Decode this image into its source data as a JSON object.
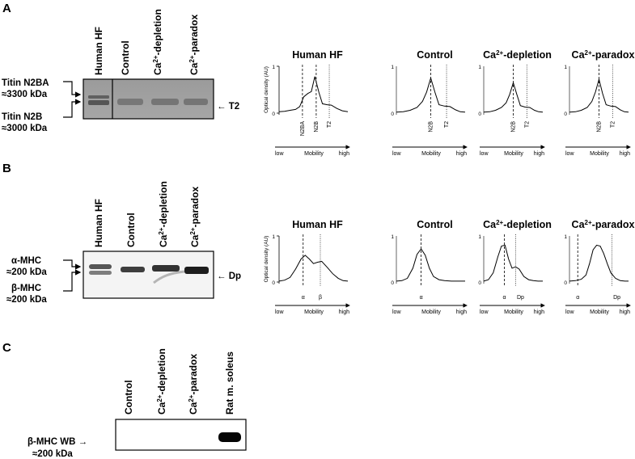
{
  "panels": {
    "A": {
      "letter": "A",
      "lanes": [
        "Human HF",
        "Control",
        "Ca2+-depletion",
        "Ca2+-paradox"
      ],
      "band_left_top": {
        "line1": "Titin N2BA",
        "line2": "≈3300 kDa"
      },
      "band_left_bottom": {
        "line1": "Titin N2B",
        "line2": "≈3000 kDa"
      },
      "band_right": "← T2",
      "plots": [
        {
          "title": "Human HF",
          "peaks": [
            "N2BA",
            "N2B",
            "T2"
          ]
        },
        {
          "title": "Control",
          "peaks": [
            "N2B",
            "T2"
          ]
        },
        {
          "title": "Ca2+-depletion",
          "peaks": [
            "N2B",
            "T2"
          ]
        },
        {
          "title": "Ca2+-paradox",
          "peaks": [
            "N2B",
            "T2"
          ]
        }
      ]
    },
    "B": {
      "letter": "B",
      "lanes": [
        "Human HF",
        "Control",
        "Ca2+-depletion",
        "Ca2+-paradox"
      ],
      "band_left_top": {
        "line1": "α-MHC",
        "line2": "≈200 kDa"
      },
      "band_left_bottom": {
        "line1": "β-MHC",
        "line2": "≈200 kDa"
      },
      "band_right": "← Dp",
      "plots": [
        {
          "title": "Human HF",
          "peaks": [
            "α",
            "β"
          ]
        },
        {
          "title": "Control",
          "peaks": [
            "α"
          ]
        },
        {
          "title": "Ca2+-depletion",
          "peaks": [
            "α",
            "Dp"
          ]
        },
        {
          "title": "Ca2+-paradox",
          "peaks": [
            "α",
            "Dp"
          ]
        }
      ]
    },
    "C": {
      "letter": "C",
      "lanes": [
        "Control",
        "Ca2+-depletion",
        "Ca2+-paradox",
        "Rat m. soleus"
      ],
      "band_left": {
        "line1": "β-MHC WB →",
        "line2": "≈200 kDa"
      }
    }
  },
  "axes": {
    "ylabel": "Optical density (AU)",
    "y_ticks": [
      "1",
      "0"
    ],
    "x_low": "low",
    "x_mid": "Mobility",
    "x_high": "high"
  },
  "chart_data": [
    {
      "type": "line",
      "title": "Human HF",
      "panel": "A",
      "xlabel": "Mobility",
      "ylabel": "Optical density (AU)",
      "ylim": [
        0,
        1
      ],
      "x": [
        0,
        0.08,
        0.16,
        0.24,
        0.3,
        0.36,
        0.42,
        0.47,
        0.52,
        0.58,
        0.63,
        0.7,
        0.76,
        0.84,
        0.92,
        1.0
      ],
      "y": [
        0.03,
        0.04,
        0.06,
        0.08,
        0.14,
        0.35,
        0.42,
        0.46,
        0.78,
        0.44,
        0.2,
        0.18,
        0.17,
        0.1,
        0.05,
        0.03
      ],
      "markers": {
        "dashed": [
          0.34,
          0.54
        ],
        "dotted": [
          0.73
        ]
      }
    },
    {
      "type": "line",
      "title": "Control",
      "panel": "A",
      "xlabel": "Mobility",
      "ylabel": "Optical density (AU)",
      "ylim": [
        0,
        1
      ],
      "x": [
        0,
        0.1,
        0.2,
        0.3,
        0.38,
        0.44,
        0.5,
        0.56,
        0.62,
        0.7,
        0.78,
        0.86,
        0.93,
        1.0
      ],
      "y": [
        0.02,
        0.03,
        0.06,
        0.12,
        0.25,
        0.45,
        0.75,
        0.45,
        0.18,
        0.15,
        0.14,
        0.07,
        0.03,
        0.02
      ],
      "markers": {
        "dashed": [
          0.5
        ],
        "dotted": [
          0.73
        ]
      }
    },
    {
      "type": "line",
      "title": "Ca2+-depletion",
      "panel": "A",
      "xlabel": "Mobility",
      "ylabel": "Optical density (AU)",
      "ylim": [
        0,
        1
      ],
      "x": [
        0,
        0.1,
        0.2,
        0.3,
        0.38,
        0.44,
        0.5,
        0.56,
        0.62,
        0.7,
        0.78,
        0.86,
        0.93,
        1.0
      ],
      "y": [
        0.02,
        0.03,
        0.06,
        0.12,
        0.22,
        0.4,
        0.65,
        0.4,
        0.16,
        0.13,
        0.12,
        0.06,
        0.03,
        0.02
      ],
      "markers": {
        "dashed": [
          0.5
        ],
        "dotted": [
          0.73
        ]
      }
    },
    {
      "type": "line",
      "title": "Ca2+-paradox",
      "panel": "A",
      "xlabel": "Mobility",
      "ylabel": "Optical density (AU)",
      "ylim": [
        0,
        1
      ],
      "x": [
        0,
        0.1,
        0.2,
        0.3,
        0.38,
        0.44,
        0.5,
        0.56,
        0.62,
        0.7,
        0.78,
        0.86,
        0.93,
        1.0
      ],
      "y": [
        0.02,
        0.03,
        0.06,
        0.12,
        0.25,
        0.45,
        0.72,
        0.42,
        0.18,
        0.15,
        0.14,
        0.07,
        0.03,
        0.02
      ],
      "markers": {
        "dashed": [
          0.5
        ],
        "dotted": [
          0.73
        ]
      }
    },
    {
      "type": "line",
      "title": "Human HF",
      "panel": "B",
      "xlabel": "Mobility",
      "ylabel": "Optical density (AU)",
      "ylim": [
        0,
        1
      ],
      "x": [
        0,
        0.08,
        0.16,
        0.24,
        0.32,
        0.38,
        0.44,
        0.5,
        0.56,
        0.62,
        0.7,
        0.78,
        0.86,
        0.93,
        1.0
      ],
      "y": [
        0.02,
        0.04,
        0.1,
        0.28,
        0.5,
        0.58,
        0.5,
        0.4,
        0.43,
        0.45,
        0.32,
        0.18,
        0.08,
        0.03,
        0.02
      ],
      "markers": {
        "dashed": [
          0.35
        ],
        "dotted": [
          0.6
        ]
      }
    },
    {
      "type": "line",
      "title": "Control",
      "panel": "B",
      "xlabel": "Mobility",
      "ylabel": "Optical density (AU)",
      "ylim": [
        0,
        1
      ],
      "x": [
        0,
        0.08,
        0.16,
        0.24,
        0.3,
        0.36,
        0.42,
        0.48,
        0.54,
        0.62,
        0.7,
        0.8,
        0.9,
        1.0
      ],
      "y": [
        0.02,
        0.03,
        0.08,
        0.3,
        0.6,
        0.72,
        0.58,
        0.3,
        0.12,
        0.05,
        0.03,
        0.02,
        0.02,
        0.02
      ],
      "markers": {
        "dashed": [
          0.36
        ],
        "dotted": []
      }
    },
    {
      "type": "line",
      "title": "Ca2+-depletion",
      "panel": "B",
      "xlabel": "Mobility",
      "ylabel": "Optical density (AU)",
      "ylim": [
        0,
        1
      ],
      "x": [
        0,
        0.08,
        0.16,
        0.24,
        0.3,
        0.36,
        0.42,
        0.48,
        0.54,
        0.6,
        0.68,
        0.76,
        0.84,
        0.92,
        1.0
      ],
      "y": [
        0.02,
        0.05,
        0.2,
        0.55,
        0.78,
        0.8,
        0.5,
        0.3,
        0.33,
        0.28,
        0.12,
        0.05,
        0.03,
        0.02,
        0.02
      ],
      "markers": {
        "dashed": [
          0.35
        ],
        "dotted": [
          0.54
        ]
      }
    },
    {
      "type": "line",
      "title": "Ca2+-paradox",
      "panel": "B",
      "xlabel": "Mobility",
      "ylabel": "Optical density (AU)",
      "ylim": [
        0,
        1
      ],
      "x": [
        0,
        0.1,
        0.2,
        0.28,
        0.34,
        0.4,
        0.46,
        0.52,
        0.58,
        0.64,
        0.7,
        0.78,
        0.86,
        0.94,
        1.0
      ],
      "y": [
        0.02,
        0.03,
        0.06,
        0.15,
        0.4,
        0.7,
        0.8,
        0.78,
        0.62,
        0.4,
        0.2,
        0.08,
        0.03,
        0.02,
        0.02
      ],
      "markers": {
        "dashed": [
          0.14
        ],
        "dotted": [
          0.72
        ]
      }
    }
  ]
}
